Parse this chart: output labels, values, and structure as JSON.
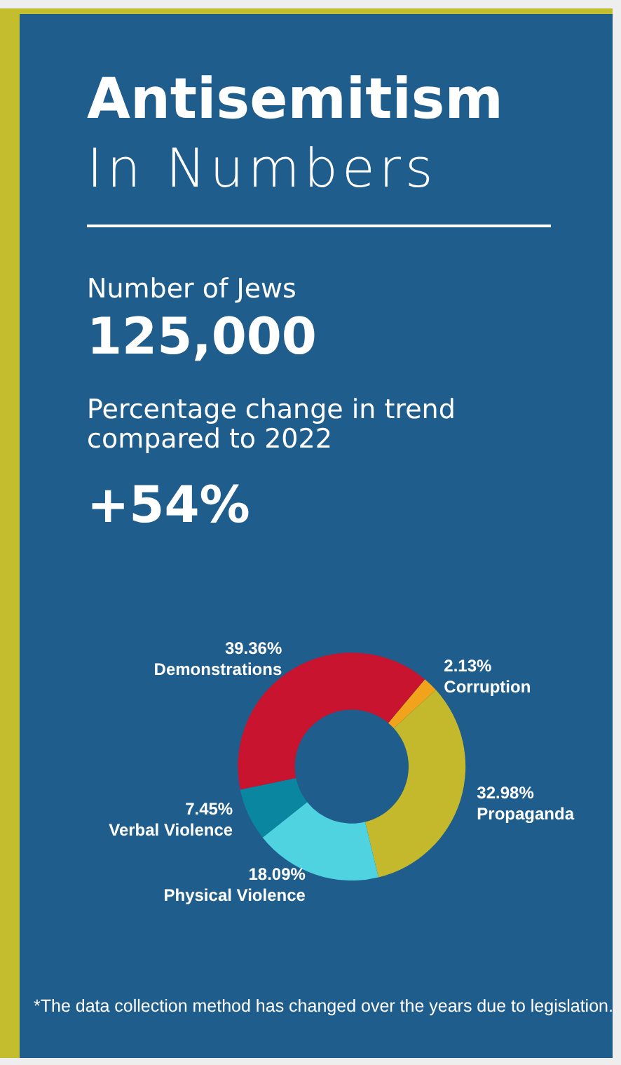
{
  "chart_data": {
    "type": "donut",
    "title": "Antisemitism",
    "subtitle": "In Numbers",
    "annotations": [
      "Number of Jews",
      "125,000",
      "Percentage change in trend compared to 2022",
      "+54%",
      "*The data collection method has changed over the years due to legislation."
    ],
    "categories": [
      "Corruption",
      "Propaganda",
      "Physical Violence",
      "Verbal Violence",
      "Demonstrations"
    ],
    "values": [
      2.13,
      32.98,
      18.09,
      7.45,
      39.36
    ],
    "value_labels": [
      "2.13%",
      "32.98%",
      "18.09%",
      "7.45%",
      "39.36%"
    ],
    "colors": [
      "#f2a31c",
      "#c4b92c",
      "#4fd3e0",
      "#0a86a0",
      "#c8142e"
    ],
    "legend": false
  }
}
